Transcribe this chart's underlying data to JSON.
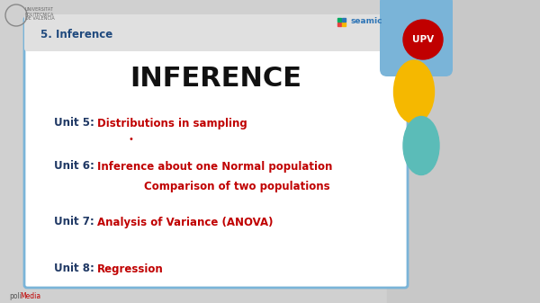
{
  "title": "INFERENCE",
  "header_text": "5. Inference",
  "bg_color": "#d0d0d0",
  "slide_bg": "#ffffff",
  "slide_border_color": "#7ab4d8",
  "header_color": "#1f497d",
  "title_color": "#111111",
  "unit_label_color": "#1f3864",
  "unit_content_color": "#c00000",
  "polimedia_text": "poli",
  "polimedia_text2": "Media",
  "polimedia_color1": "#555555",
  "polimedia_color2": "#c00000",
  "seamic_color": "#2e75b6",
  "upv_bg": "#c00000",
  "upv_text": "UPV",
  "corner_yellow": "#f5b800",
  "corner_teal": "#5bbcb8",
  "corner_blue": "#7ab4d8",
  "person_bg": "#e8e8e8"
}
